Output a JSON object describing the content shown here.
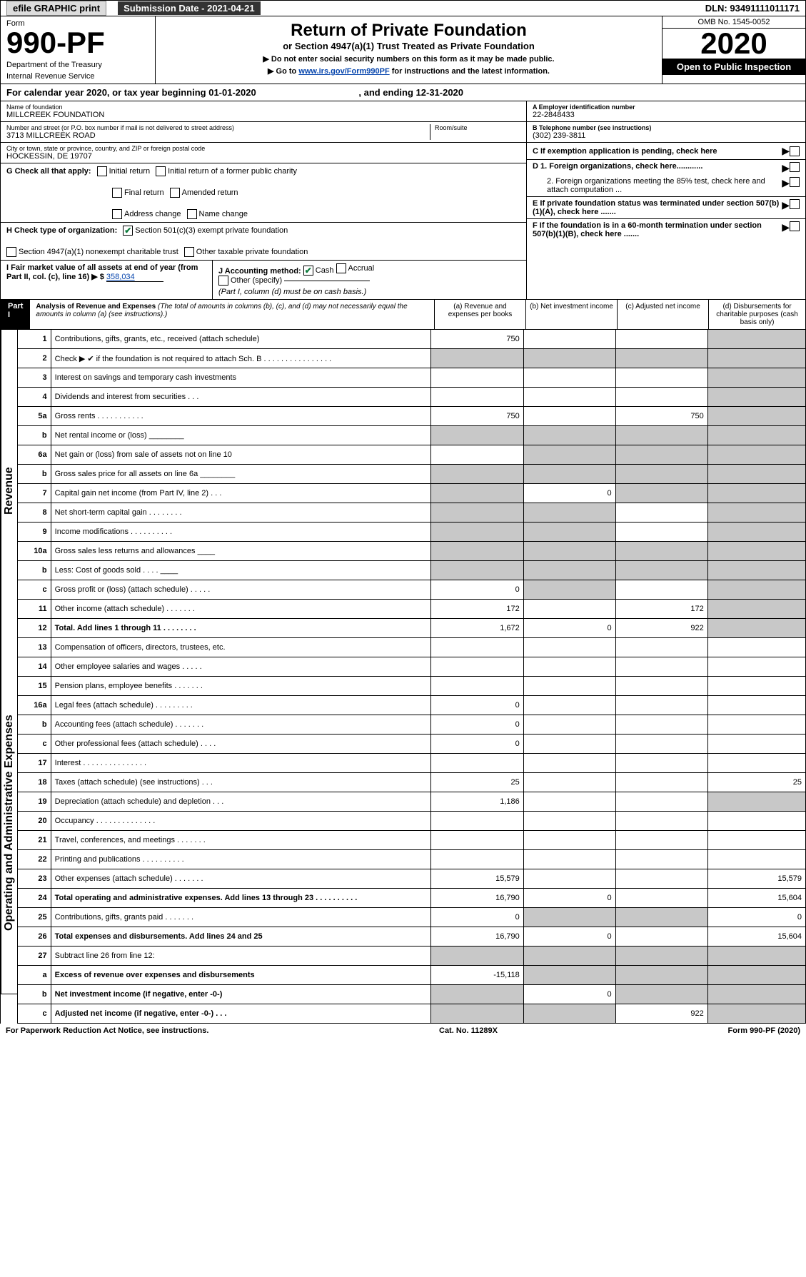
{
  "header": {
    "efile": "efile GRAPHIC print",
    "submission": "Submission Date - 2021-04-21",
    "dln": "DLN: 93491111011171"
  },
  "formbox": {
    "form_word": "Form",
    "form_no": "990-PF",
    "dept": "Department of the Treasury",
    "irs": "Internal Revenue Service"
  },
  "title": {
    "main": "Return of Private Foundation",
    "sub": "or Section 4947(a)(1) Trust Treated as Private Foundation",
    "instr1": "▶ Do not enter social security numbers on this form as it may be made public.",
    "instr2_pre": "▶ Go to ",
    "instr2_link": "www.irs.gov/Form990PF",
    "instr2_post": " for instructions and the latest information."
  },
  "yearbox": {
    "omb": "OMB No. 1545-0052",
    "year": "2020",
    "open": "Open to Public Inspection"
  },
  "calyear": {
    "text_a": "For calendar year 2020, or tax year beginning 01-01-2020",
    "text_b": ", and ending 12-31-2020"
  },
  "foundation": {
    "name_lbl": "Name of foundation",
    "name": "MILLCREEK FOUNDATION",
    "addr_lbl": "Number and street (or P.O. box number if mail is not delivered to street address)",
    "addr": "3713 MILLCREEK ROAD",
    "room_lbl": "Room/suite",
    "city_lbl": "City or town, state or province, country, and ZIP or foreign postal code",
    "city": "HOCKESSIN, DE  19707"
  },
  "right_fields": {
    "a_lbl": "A Employer identification number",
    "a_val": "22-2848433",
    "b_lbl": "B Telephone number (see instructions)",
    "b_val": "(302) 239-3811",
    "c_lbl": "C If exemption application is pending, check here",
    "d1": "D 1. Foreign organizations, check here............",
    "d2": "2. Foreign organizations meeting the 85% test, check here and attach computation ...",
    "e_lbl": "E  If private foundation status was terminated under section 507(b)(1)(A), check here .......",
    "f_lbl": "F  If the foundation is in a 60-month termination under section 507(b)(1)(B), check here ......."
  },
  "checks": {
    "g": "G Check all that apply:",
    "initial": "Initial return",
    "initial_former": "Initial return of a former public charity",
    "final": "Final return",
    "amended": "Amended return",
    "addr_change": "Address change",
    "name_change": "Name change",
    "h": "H Check type of organization:",
    "h1": "Section 501(c)(3) exempt private foundation",
    "h2": "Section 4947(a)(1) nonexempt charitable trust",
    "h3": "Other taxable private foundation",
    "i": "I Fair market value of all assets at end of year (from Part II, col. (c), line 16) ▶ $",
    "i_val": "358,034",
    "j": "J Accounting method:",
    "j_cash": "Cash",
    "j_accrual": "Accrual",
    "j_other": "Other (specify)",
    "j_note": "(Part I, column (d) must be on cash basis.)"
  },
  "part1": {
    "label": "Part I",
    "title": "Analysis of Revenue and Expenses",
    "note": "(The total of amounts in columns (b), (c), and (d) may not necessarily equal the amounts in column (a) (see instructions).)",
    "col_a": "(a)   Revenue and expenses per books",
    "col_b": "(b)  Net investment income",
    "col_c": "(c)  Adjusted net income",
    "col_d": "(d)  Disbursements for charitable purposes (cash basis only)"
  },
  "revenue_label": "Revenue",
  "opex_label": "Operating and Administrative Expenses",
  "rows": [
    {
      "n": "1",
      "d": "Contributions, gifts, grants, etc., received (attach schedule)",
      "a": "750",
      "gray": [
        "d"
      ]
    },
    {
      "n": "2",
      "d": "Check ▶ ✔ if the foundation is not required to attach Sch. B  .  .  .  .  .  .  .  .  .  .  .  .  .  .  .  .",
      "gray": [
        "a",
        "b",
        "c",
        "d"
      ]
    },
    {
      "n": "3",
      "d": "Interest on savings and temporary cash investments",
      "gray": [
        "d"
      ]
    },
    {
      "n": "4",
      "d": "Dividends and interest from securities    .   .   .",
      "gray": [
        "d"
      ]
    },
    {
      "n": "5a",
      "d": "Gross rents     .   .   .   .   .   .   .   .   .   .   .",
      "a": "750",
      "c": "750",
      "gray": [
        "d"
      ]
    },
    {
      "n": "b",
      "d": "Net rental income or (loss) ________",
      "gray": [
        "a",
        "b",
        "c",
        "d"
      ]
    },
    {
      "n": "6a",
      "d": "Net gain or (loss) from sale of assets not on line 10",
      "gray": [
        "b",
        "c",
        "d"
      ]
    },
    {
      "n": "b",
      "d": "Gross sales price for all assets on line 6a ________",
      "gray": [
        "a",
        "b",
        "c",
        "d"
      ]
    },
    {
      "n": "7",
      "d": "Capital gain net income (from Part IV, line 2)    .   .   .",
      "b": "0",
      "gray": [
        "a",
        "c",
        "d"
      ]
    },
    {
      "n": "8",
      "d": "Net short-term capital gain   .   .   .   .   .   .   .   .",
      "gray": [
        "a",
        "b",
        "d"
      ]
    },
    {
      "n": "9",
      "d": "Income modifications  .   .   .   .   .   .   .   .   .   .",
      "gray": [
        "a",
        "b",
        "d"
      ]
    },
    {
      "n": "10a",
      "d": "Gross sales less returns and allowances  ____",
      "gray": [
        "a",
        "b",
        "c",
        "d"
      ]
    },
    {
      "n": "b",
      "d": "Less: Cost of goods sold      .   .   .   .   ____",
      "gray": [
        "a",
        "b",
        "c",
        "d"
      ]
    },
    {
      "n": "c",
      "d": "Gross profit or (loss) (attach schedule)    .   .   .   .   .",
      "a": "0",
      "gray": [
        "b",
        "d"
      ]
    },
    {
      "n": "11",
      "d": "Other income (attach schedule)    .   .   .   .   .   .   .",
      "a": "172",
      "c": "172",
      "gray": [
        "d"
      ]
    },
    {
      "n": "12",
      "d": "Total. Add lines 1 through 11    .   .   .   .   .   .   .   .",
      "bold": true,
      "a": "1,672",
      "b": "0",
      "c": "922",
      "gray": [
        "d"
      ]
    },
    {
      "n": "13",
      "d": "Compensation of officers, directors, trustees, etc."
    },
    {
      "n": "14",
      "d": "Other employee salaries and wages    .   .   .   .   ."
    },
    {
      "n": "15",
      "d": "Pension plans, employee benefits   .   .   .   .   .   .   ."
    },
    {
      "n": "16a",
      "d": "Legal fees (attach schedule)  .   .   .   .   .   .   .   .   .",
      "a": "0"
    },
    {
      "n": "b",
      "d": "Accounting fees (attach schedule)   .   .   .   .   .   .   .",
      "a": "0"
    },
    {
      "n": "c",
      "d": "Other professional fees (attach schedule)    .   .   .   .",
      "a": "0"
    },
    {
      "n": "17",
      "d": "Interest   .   .   .   .   .   .   .   .   .   .   .   .   .   .   ."
    },
    {
      "n": "18",
      "d": "Taxes (attach schedule) (see instructions)    .   .   .",
      "a": "25",
      "dd": "25"
    },
    {
      "n": "19",
      "d": "Depreciation (attach schedule) and depletion    .   .   .",
      "a": "1,186",
      "gray": [
        "d"
      ]
    },
    {
      "n": "20",
      "d": "Occupancy  .   .   .   .   .   .   .   .   .   .   .   .   .   ."
    },
    {
      "n": "21",
      "d": "Travel, conferences, and meetings  .   .   .   .   .   .   ."
    },
    {
      "n": "22",
      "d": "Printing and publications  .   .   .   .   .   .   .   .   .   ."
    },
    {
      "n": "23",
      "d": "Other expenses (attach schedule)   .   .   .   .   .   .   .",
      "a": "15,579",
      "dd": "15,579"
    },
    {
      "n": "24",
      "d": "Total operating and administrative expenses. Add lines 13 through 23   .   .   .   .   .   .   .   .   .   .",
      "bold": true,
      "a": "16,790",
      "b": "0",
      "dd": "15,604"
    },
    {
      "n": "25",
      "d": "Contributions, gifts, grants paid      .   .   .   .   .   .   .",
      "a": "0",
      "dd": "0",
      "gray": [
        "b",
        "c"
      ]
    },
    {
      "n": "26",
      "d": "Total expenses and disbursements. Add lines 24 and 25",
      "bold": true,
      "a": "16,790",
      "b": "0",
      "dd": "15,604"
    },
    {
      "n": "27",
      "d": "Subtract line 26 from line 12:",
      "gray": [
        "a",
        "b",
        "c",
        "d"
      ]
    },
    {
      "n": "a",
      "d": "Excess of revenue over expenses and disbursements",
      "bold": true,
      "a": "-15,118",
      "gray": [
        "b",
        "c",
        "d"
      ]
    },
    {
      "n": "b",
      "d": "Net investment income (if negative, enter -0-)",
      "bold": true,
      "b": "0",
      "gray": [
        "a",
        "c",
        "d"
      ]
    },
    {
      "n": "c",
      "d": "Adjusted net income (if negative, enter -0-)   .   .   .",
      "bold": true,
      "c": "922",
      "gray": [
        "a",
        "b",
        "d"
      ]
    }
  ],
  "footer": {
    "left": "For Paperwork Reduction Act Notice, see instructions.",
    "mid": "Cat. No. 11289X",
    "right": "Form 990-PF (2020)"
  }
}
